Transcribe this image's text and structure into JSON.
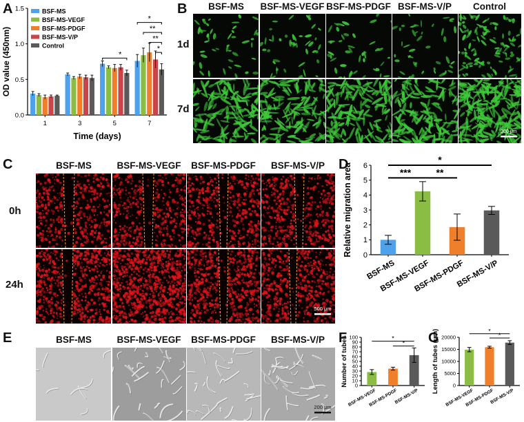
{
  "colors": {
    "bsf_ms": "#4ea2ec",
    "vegf": "#8bbd45",
    "pdgf": "#f07f2c",
    "vp": "#c8464a",
    "control": "#5a5a5a",
    "fluor_green": "#3fc93a",
    "fluor_red": "#e0141c"
  },
  "panel_labels": {
    "A": "A",
    "B": "B",
    "C": "C",
    "D": "D",
    "E": "E",
    "F": "F",
    "G": "G"
  },
  "panel_b": {
    "headers": [
      "BSF-MS",
      "BSF-MS-VEGF",
      "BSF-MS-PDGF",
      "BSF-MS-V/P",
      "Control"
    ],
    "rows": [
      "1d",
      "7d"
    ],
    "scale_bar": "200 μm"
  },
  "panel_c": {
    "headers": [
      "BSF-MS",
      "BSF-MS-VEGF",
      "BSF-MS-PDGF",
      "BSF-MS-V/P"
    ],
    "rows": [
      "0h",
      "24h"
    ],
    "scale_bar": "500 μm"
  },
  "panel_e": {
    "headers": [
      "BSF-MS",
      "BSF-MS-VEGF",
      "BSF-MS-PDGF",
      "BSF-MS-V/P"
    ],
    "scale_bar": "200 μm"
  },
  "chart_data": [
    {
      "panel": "A",
      "type": "bar",
      "ylabel": "OD value (450nm)",
      "xlabel": "Time (days)",
      "ylim": [
        0,
        1.5
      ],
      "yticks": [
        "0.0",
        "0.5",
        "1.0",
        "1.5"
      ],
      "categories": [
        "1",
        "3",
        "5",
        "7"
      ],
      "legend_position": "top-left",
      "series": [
        {
          "name": "BSF-MS",
          "color": "#4ea2ec",
          "values": [
            0.3,
            0.57,
            0.72,
            0.76
          ],
          "errors": [
            0.03,
            0.02,
            0.04,
            0.09
          ]
        },
        {
          "name": "BSF-MS-VEGF",
          "color": "#8bbd45",
          "values": [
            0.28,
            0.52,
            0.67,
            0.84
          ],
          "errors": [
            0.02,
            0.02,
            0.02,
            0.1
          ]
        },
        {
          "name": "BSF-MS-PDGF",
          "color": "#f07f2c",
          "values": [
            0.25,
            0.54,
            0.66,
            0.88
          ],
          "errors": [
            0.03,
            0.03,
            0.05,
            0.13
          ]
        },
        {
          "name": "BSF-MS-V/P",
          "color": "#c8464a",
          "values": [
            0.26,
            0.53,
            0.67,
            0.78
          ],
          "errors": [
            0.02,
            0.03,
            0.04,
            0.12
          ]
        },
        {
          "name": "Control",
          "color": "#5a5a5a",
          "values": [
            0.27,
            0.52,
            0.59,
            0.64
          ],
          "errors": [
            0.01,
            0.04,
            0.04,
            0.08
          ]
        }
      ],
      "significance": [
        {
          "category": "5",
          "stars": "*"
        },
        {
          "category": "7",
          "stars": "*"
        },
        {
          "category": "7",
          "stars": "**"
        },
        {
          "category": "7",
          "stars": "**"
        },
        {
          "category": "7",
          "stars": "*"
        }
      ]
    },
    {
      "panel": "D",
      "type": "bar",
      "ylabel": "Relative migration area",
      "ylim": [
        0,
        6
      ],
      "yticks": [
        "0",
        "1",
        "2",
        "3",
        "4",
        "5",
        "6"
      ],
      "categories": [
        "BSF-MS",
        "BSF-MS-VEGF",
        "BSF-MS-PDGF",
        "BSF-MS-V/P"
      ],
      "colors": [
        "#4ea2ec",
        "#8bbd45",
        "#f07f2c",
        "#5a5a5a"
      ],
      "values": [
        1.0,
        4.25,
        1.85,
        2.97
      ],
      "errors": [
        0.3,
        0.65,
        0.88,
        0.27
      ],
      "significance": [
        {
          "stars": "***"
        },
        {
          "stars": "**"
        },
        {
          "stars": "*"
        }
      ]
    },
    {
      "panel": "F",
      "type": "bar",
      "ylabel": "Number of tubes",
      "ylim": [
        0,
        100
      ],
      "yticks": [
        "0",
        "10",
        "20",
        "30",
        "40",
        "50",
        "60",
        "70",
        "80",
        "90",
        "100"
      ],
      "categories": [
        "BSF-MS-VEGF",
        "BSF-MS-PDGF",
        "BSF-MS-V/P"
      ],
      "colors": [
        "#8bbd45",
        "#f07f2c",
        "#5a5a5a"
      ],
      "values": [
        28,
        35,
        63
      ],
      "errors": [
        5,
        3,
        15
      ],
      "significance": [
        {
          "stars": "*"
        },
        {
          "stars": "*"
        }
      ]
    },
    {
      "panel": "G",
      "type": "bar",
      "ylabel": "Length of tubes (μm)",
      "ylim": [
        0,
        20000
      ],
      "yticks": [
        "0",
        "5000",
        "10000",
        "15000",
        "20000"
      ],
      "categories": [
        "BSF-MS-VEGF",
        "BSF-MS-PDGF",
        "BSF-MS-V/P"
      ],
      "colors": [
        "#8bbd45",
        "#f07f2c",
        "#5a5a5a"
      ],
      "values": [
        14900,
        15900,
        17800
      ],
      "errors": [
        900,
        400,
        800
      ],
      "significance": [
        {
          "stars": "*"
        },
        {
          "stars": "*"
        }
      ]
    }
  ]
}
